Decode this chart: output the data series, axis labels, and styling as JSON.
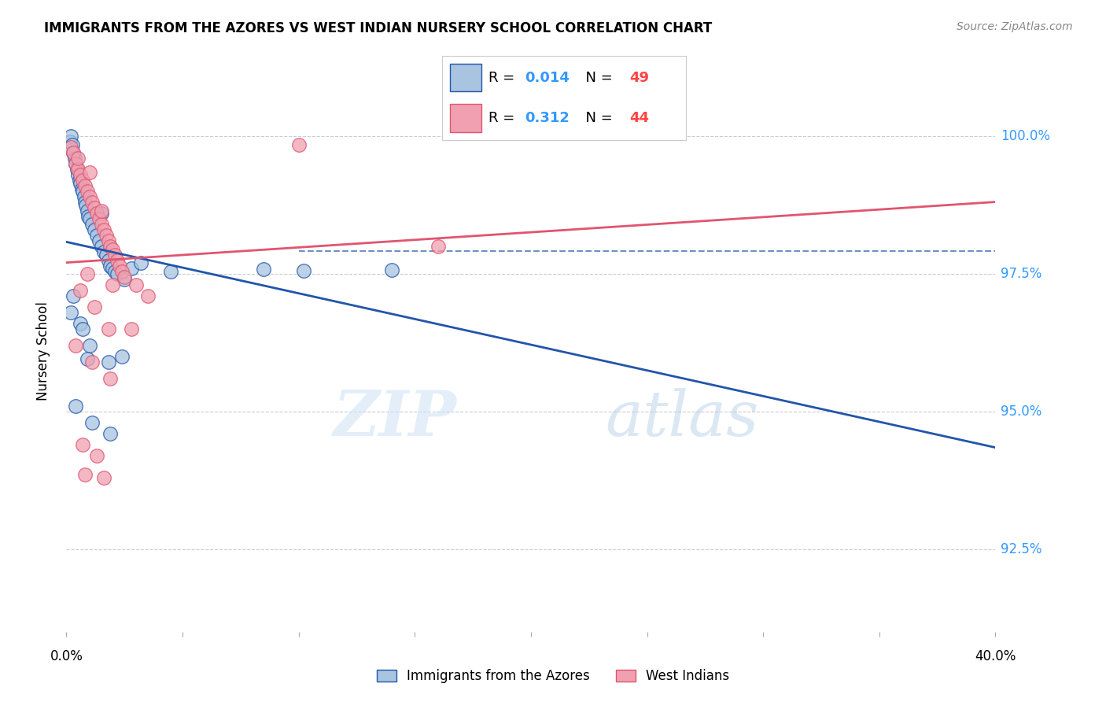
{
  "title": "IMMIGRANTS FROM THE AZORES VS WEST INDIAN NURSERY SCHOOL CORRELATION CHART",
  "source": "Source: ZipAtlas.com",
  "ylabel": "Nursery School",
  "ytick_values": [
    92.5,
    95.0,
    97.5,
    100.0
  ],
  "xlim": [
    0.0,
    40.0
  ],
  "ylim": [
    91.0,
    101.2
  ],
  "legend_blue_r": "0.014",
  "legend_blue_n": "49",
  "legend_pink_r": "0.312",
  "legend_pink_n": "44",
  "legend_label_blue": "Immigrants from the Azores",
  "legend_label_pink": "West Indians",
  "blue_color": "#a8c4e0",
  "pink_color": "#f0a0b0",
  "blue_line_color": "#2255aa",
  "pink_line_color": "#e05570",
  "blue_r_color": "#3399ff",
  "blue_n_color": "#ff4444",
  "pink_r_color": "#3399ff",
  "pink_n_color": "#ff4444",
  "watermark_zip": "ZIP",
  "watermark_atlas": "atlas",
  "blue_scatter_x": [
    0.15,
    0.2,
    0.25,
    0.3,
    0.35,
    0.4,
    0.45,
    0.5,
    0.55,
    0.6,
    0.65,
    0.7,
    0.75,
    0.8,
    0.85,
    0.9,
    0.95,
    1.0,
    1.1,
    1.2,
    1.3,
    1.4,
    1.5,
    1.6,
    1.7,
    1.8,
    1.9,
    2.0,
    2.1,
    2.2,
    2.5,
    2.8,
    3.2,
    4.5,
    8.5,
    10.2,
    14.0,
    0.3,
    0.6,
    1.0,
    1.8,
    2.4,
    0.4,
    1.1,
    1.9,
    0.9,
    0.2,
    0.7,
    1.5
  ],
  "blue_scatter_y": [
    99.9,
    100.0,
    99.85,
    99.7,
    99.6,
    99.5,
    99.4,
    99.3,
    99.2,
    99.15,
    99.05,
    99.0,
    98.9,
    98.8,
    98.75,
    98.65,
    98.55,
    98.5,
    98.4,
    98.3,
    98.2,
    98.1,
    98.0,
    97.9,
    97.85,
    97.75,
    97.65,
    97.6,
    97.55,
    97.5,
    97.4,
    97.6,
    97.7,
    97.55,
    97.58,
    97.56,
    97.57,
    97.1,
    96.6,
    96.2,
    95.9,
    96.0,
    95.1,
    94.8,
    94.6,
    95.95,
    96.8,
    96.5,
    98.6
  ],
  "pink_scatter_x": [
    0.2,
    0.3,
    0.4,
    0.5,
    0.6,
    0.7,
    0.8,
    0.9,
    1.0,
    1.1,
    1.2,
    1.3,
    1.4,
    1.5,
    1.6,
    1.7,
    1.8,
    1.9,
    2.0,
    2.1,
    2.2,
    2.3,
    2.4,
    2.5,
    3.0,
    3.5,
    0.5,
    1.0,
    1.5,
    2.8,
    10.0,
    16.0,
    0.9,
    0.6,
    1.2,
    1.8,
    0.4,
    1.1,
    1.9,
    0.7,
    1.3,
    0.8,
    1.6,
    2.0
  ],
  "pink_scatter_y": [
    99.8,
    99.7,
    99.5,
    99.4,
    99.3,
    99.2,
    99.1,
    99.0,
    98.9,
    98.8,
    98.7,
    98.6,
    98.5,
    98.4,
    98.3,
    98.2,
    98.1,
    98.0,
    97.95,
    97.85,
    97.75,
    97.65,
    97.55,
    97.45,
    97.3,
    97.1,
    99.6,
    99.35,
    98.65,
    96.5,
    99.85,
    98.0,
    97.5,
    97.2,
    96.9,
    96.5,
    96.2,
    95.9,
    95.6,
    94.4,
    94.2,
    93.85,
    93.8,
    97.3
  ]
}
